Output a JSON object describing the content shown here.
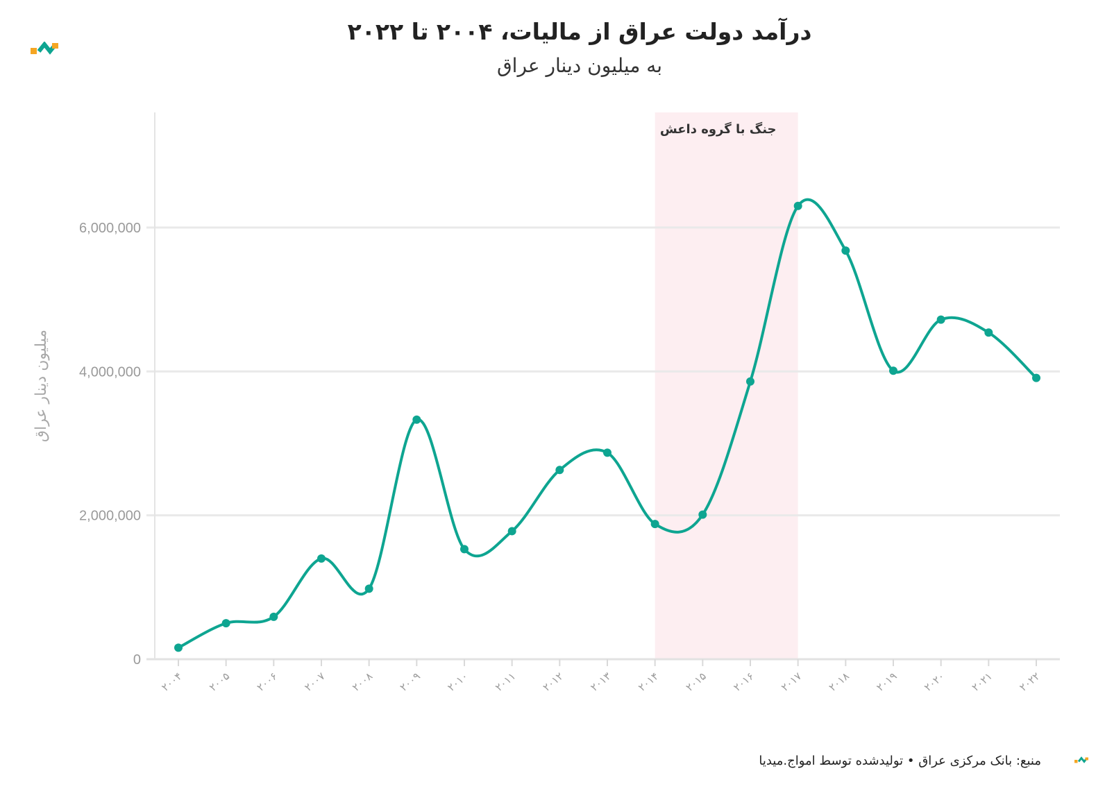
{
  "header": {
    "title": "درآمد دولت عراق از مالیات، ۲۰۰۴ تا ۲۰۲۲",
    "subtitle": "به میلیون دینار عراق"
  },
  "footer": {
    "source": "منبع: بانک مرکزی عراق • تولیدشده توسط امواج.میدیا"
  },
  "colors": {
    "line": "#0ea591",
    "band": "#fdeef1",
    "grid": "#e9e9e9",
    "logo_orange": "#f5a623",
    "logo_teal": "#0ea591"
  },
  "chart_data": {
    "type": "line",
    "title": "درآمد دولت عراق از مالیات، ۲۰۰۴ تا ۲۰۲۲",
    "subtitle": "به میلیون دینار عراق",
    "ylabel": "میلیون دینار عراق",
    "xlabel": "",
    "categories": [
      "۲۰۰۴",
      "۲۰۰۵",
      "۲۰۰۶",
      "۲۰۰۷",
      "۲۰۰۸",
      "۲۰۰۹",
      "۲۰۱۰",
      "۲۰۱۱",
      "۲۰۱۲",
      "۲۰۱۳",
      "۲۰۱۴",
      "۲۰۱۵",
      "۲۰۱۶",
      "۲۰۱۷",
      "۲۰۱۸",
      "۲۰۱۹",
      "۲۰۲۰",
      "۲۰۲۱",
      "۲۰۲۲"
    ],
    "values": [
      160000,
      500000,
      590000,
      1400000,
      980000,
      3330000,
      1530000,
      1780000,
      2630000,
      2870000,
      1880000,
      2010000,
      3860000,
      6300000,
      5680000,
      4010000,
      4720000,
      4540000,
      3910000
    ],
    "ylim": [
      0,
      7600000
    ],
    "yticks": [
      0,
      2000000,
      4000000,
      6000000
    ],
    "ytick_labels": [
      "0",
      "2,000,000",
      "4,000,000",
      "6,000,000"
    ],
    "grid": true,
    "annotation": {
      "label": "جنگ با گروه داعش",
      "from_index": 10,
      "to_index": 13
    }
  }
}
